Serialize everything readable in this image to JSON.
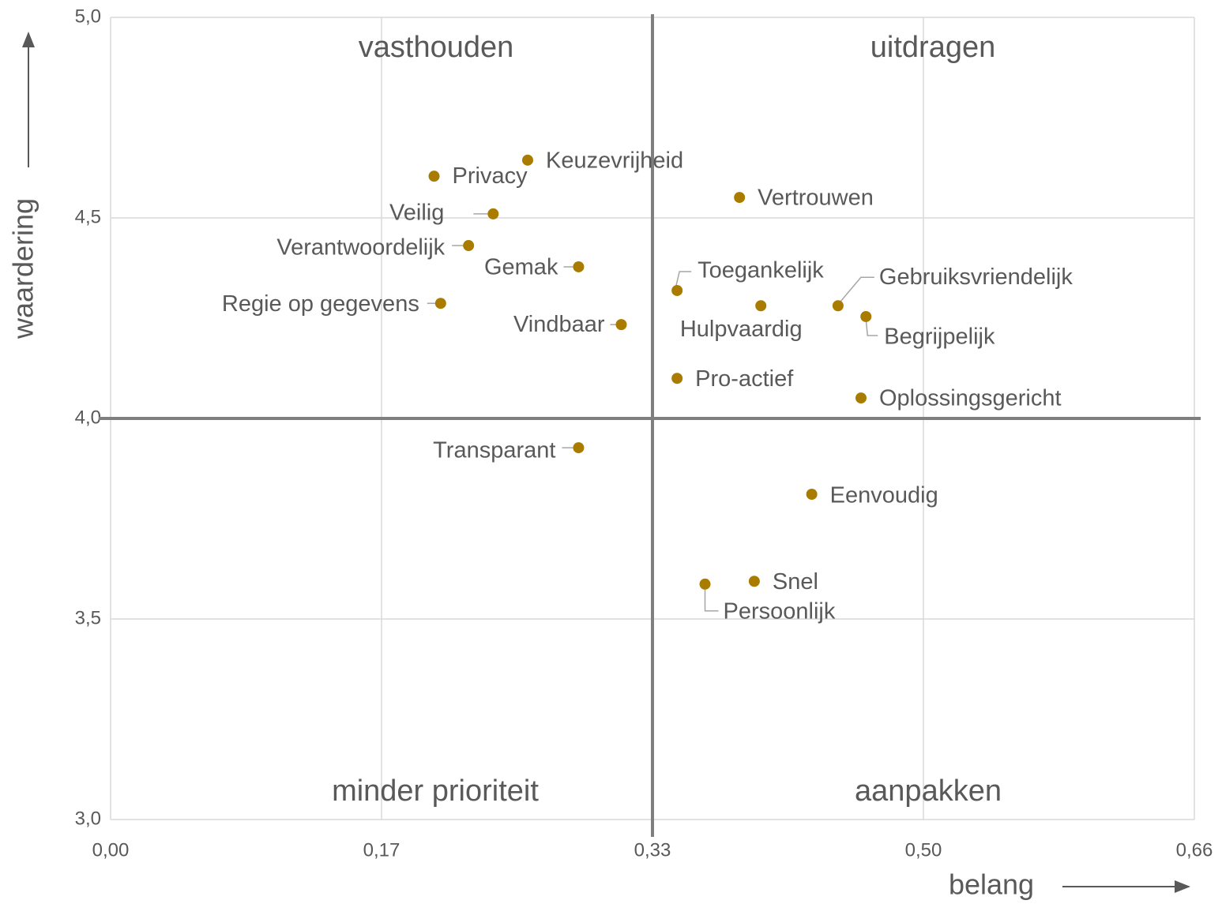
{
  "chart_data": {
    "type": "scatter",
    "x_label": "belang",
    "y_label": "waardering",
    "xlim": [
      0,
      0.66
    ],
    "ylim": [
      3.0,
      5.0
    ],
    "xticks": [
      {
        "value": 0,
        "label": "0,00"
      },
      {
        "value": 0.165,
        "label": "0,17"
      },
      {
        "value": 0.33,
        "label": "0,33"
      },
      {
        "value": 0.495,
        "label": "0,50"
      },
      {
        "value": 0.66,
        "label": "0,66"
      }
    ],
    "yticks": [
      {
        "value": 3.0,
        "label": "3,0"
      },
      {
        "value": 3.5,
        "label": "3,5"
      },
      {
        "value": 4.0,
        "label": "4,0"
      },
      {
        "value": 4.5,
        "label": "4,5"
      },
      {
        "value": 5.0,
        "label": "5,0"
      }
    ],
    "grid": true,
    "color": "#a97c00",
    "dividers": {
      "x": 0.33,
      "y": 4.0
    },
    "annotations": [
      "vasthouden",
      "uitdragen",
      "minder prioriteit",
      "aanpakken"
    ],
    "point_labels": [
      "Privacy",
      "Keuzevrijheid",
      "Veilig",
      "Verantwoordelijk",
      "Gemak",
      "Regie op gegevens",
      "Vindbaar",
      "Vertrouwen",
      "Toegankelijk",
      "Hulpvaardig",
      "Gebruiksvriendelijk",
      "Begrijpelijk",
      "Pro-actief",
      "Oplossingsgericht",
      "Transparant",
      "Eenvoudig",
      "Snel",
      "Persoonlijk"
    ],
    "x": [
      0.197,
      0.254,
      0.233,
      0.218,
      0.285,
      0.201,
      0.311,
      0.383,
      0.345,
      0.396,
      0.443,
      0.46,
      0.345,
      0.457,
      0.285,
      0.427,
      0.392,
      0.362
    ],
    "values": [
      4.604,
      4.644,
      4.51,
      4.431,
      4.378,
      4.287,
      4.234,
      4.551,
      4.319,
      4.281,
      4.281,
      4.254,
      4.1,
      4.051,
      3.927,
      3.811,
      3.594,
      3.587
    ]
  }
}
